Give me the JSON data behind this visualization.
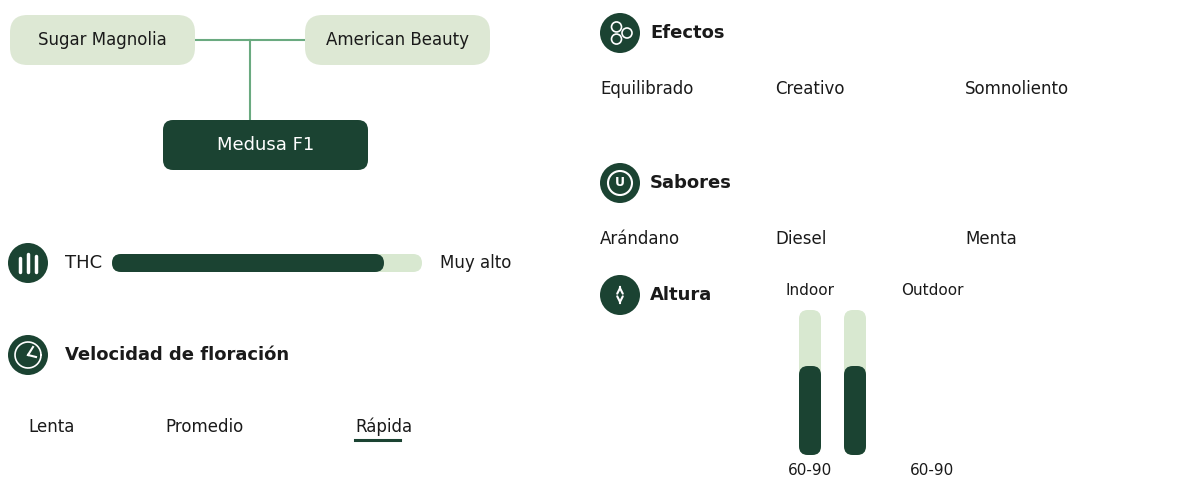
{
  "bg_color": "#ffffff",
  "dark_green": "#1b4332",
  "light_green_box": "#dde8d4",
  "light_green_bar_empty": "#d8e8d0",
  "connector_color": "#6aaa80",
  "text_color": "#1a1a1a",
  "parent1": "Sugar Magnolia",
  "parent2": "American Beauty",
  "child": "Medusa F1",
  "thc_label": "THC",
  "thc_value_label": "Muy alto",
  "thc_fill": 0.88,
  "flowering_label": "Velocidad de floración",
  "flowering_speeds": [
    "Lenta",
    "Promedio",
    "Rápida"
  ],
  "flowering_active_idx": 2,
  "efectos_label": "Efectos",
  "efectos": [
    "Equilibrado",
    "Creativo",
    "Somnoliento"
  ],
  "sabores_label": "Sabores",
  "sabores": [
    "Arándano",
    "Diesel",
    "Menta"
  ],
  "altura_label": "Altura",
  "altura_indoor": "Indoor",
  "altura_outdoor": "Outdoor",
  "altura_range_indoor": "60-90",
  "altura_range_outdoor": "60-90",
  "fig_w": 12.0,
  "fig_h": 4.8,
  "dpi": 100
}
